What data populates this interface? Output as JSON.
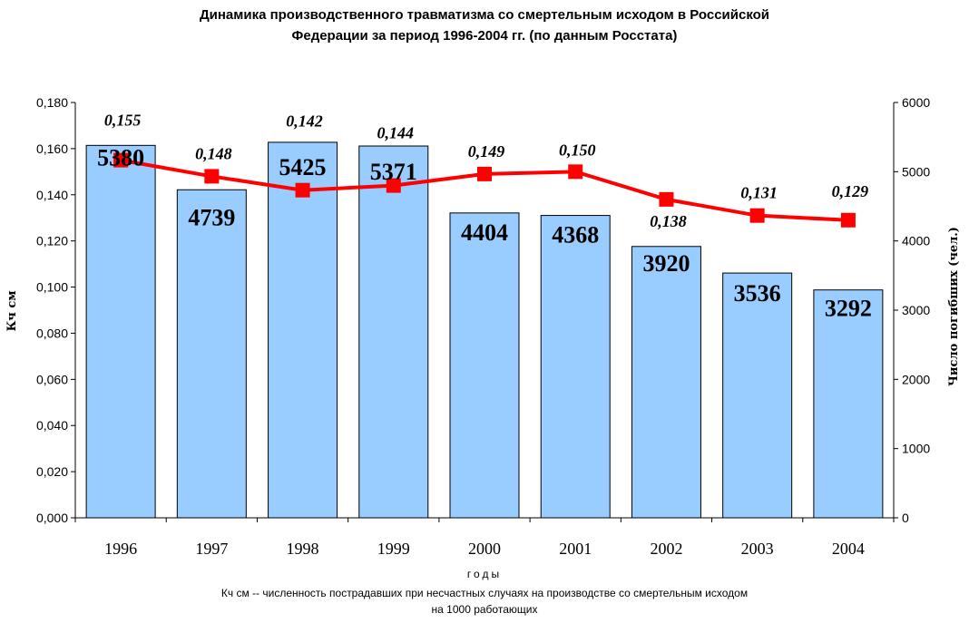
{
  "title_line1": "Динамика производственного травматизма со смертельным исходом в Российской",
  "title_line2": "Федерации за период 1996-2004 гг. (по данным Росстата)",
  "chart_data": {
    "type": "bar",
    "categories": [
      "1996",
      "1997",
      "1998",
      "1999",
      "2000",
      "2001",
      "2002",
      "2003",
      "2004"
    ],
    "series": [
      {
        "chart": "bar",
        "axis": "right",
        "values": [
          5380,
          4739,
          5425,
          5371,
          4404,
          4368,
          3920,
          3536,
          3292
        ],
        "labels": [
          "5380",
          "4739",
          "5425",
          "5371",
          "4404",
          "4368",
          "3920",
          "3536",
          "3292"
        ],
        "color": "#99ccff"
      },
      {
        "chart": "line",
        "axis": "left",
        "values": [
          0.155,
          0.148,
          0.142,
          0.144,
          0.149,
          0.15,
          0.138,
          0.131,
          0.129
        ],
        "labels": [
          "0,155",
          "0,148",
          "0,142",
          "0,144",
          "0,149",
          "0,150",
          "0,138",
          "0,131",
          "0,129"
        ],
        "color": "#ff0000"
      }
    ],
    "xlabel": "годы",
    "ylabel": "Кч см",
    "y2label": "Число погибших (чел.)",
    "ylim": [
      0,
      0.18
    ],
    "y2lim": [
      0,
      6000
    ],
    "yticks": [
      "0,000",
      "0,020",
      "0,040",
      "0,060",
      "0,080",
      "0,100",
      "0,120",
      "0,140",
      "0,160",
      "0,180"
    ],
    "y2ticks": [
      "0",
      "1000",
      "2000",
      "3000",
      "4000",
      "5000",
      "6000"
    ],
    "grid": false
  },
  "footnote_line1": "Кч см -- численность пострадавших при несчастных случаях на производстве со смертельным исходом",
  "footnote_line2": "на 1000 работающих"
}
